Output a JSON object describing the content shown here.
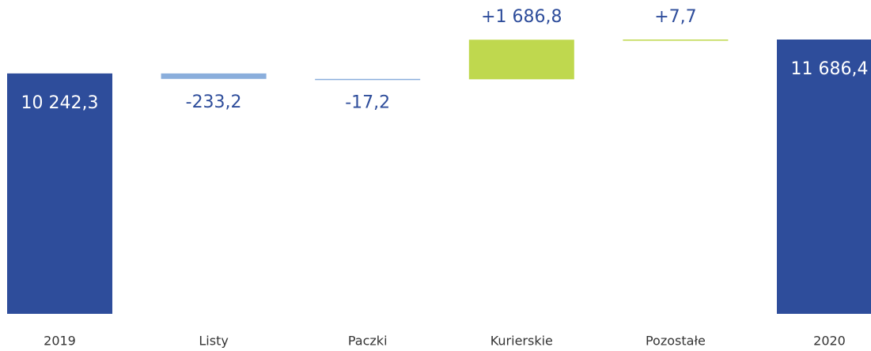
{
  "chart_data": {
    "type": "waterfall",
    "categories": [
      "2019",
      "Listy",
      "Paczki",
      "Kurierskie",
      "Pozostałe",
      "2020"
    ],
    "values": [
      10242.3,
      -233.2,
      -17.2,
      1686.8,
      7.7,
      11686.4
    ],
    "value_labels": [
      "10 242,3",
      "-233,2",
      "-17,2",
      "+1 686,8",
      "+7,7",
      "11 686,4"
    ],
    "colors": [
      "#2e4d9b",
      "#8aaedc",
      "#8aaedc",
      "#bfd84e",
      "#bfd84e",
      "#2e4d9b"
    ]
  }
}
